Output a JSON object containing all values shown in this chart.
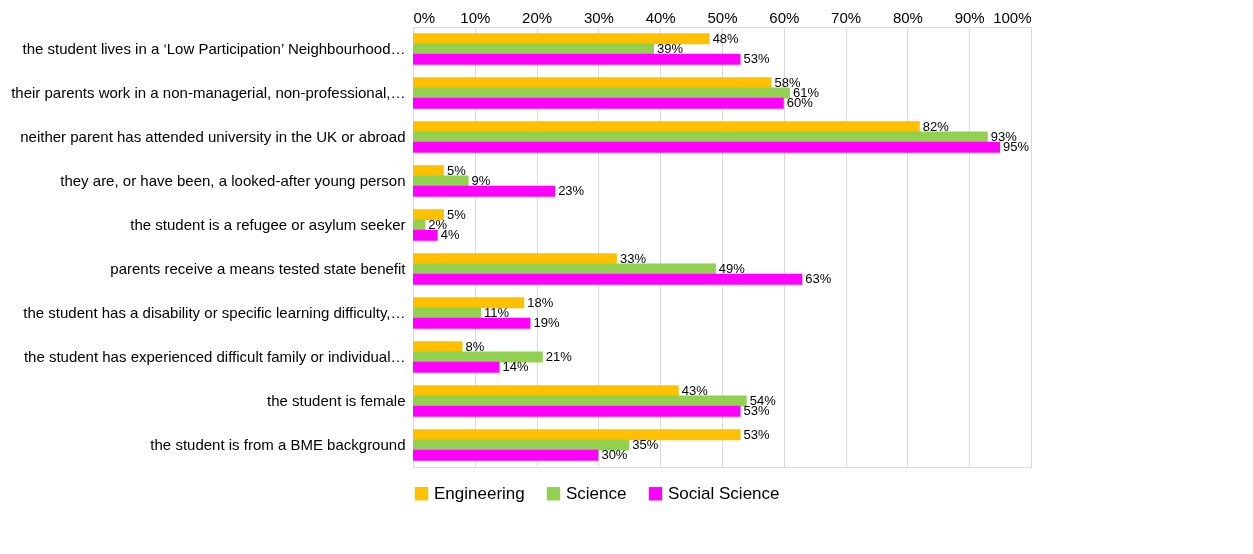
{
  "chart_data": {
    "type": "bar",
    "orientation": "horizontal",
    "categories": [
      "the student lives in a ‘Low Participation’ Neighbourhood…",
      "their parents work in a non-managerial, non-professional,…",
      "neither parent has attended university in the UK or abroad",
      "they are, or have been, a looked-after young person",
      "the student is a refugee or asylum seeker",
      "parents receive a means tested state benefit",
      "the student has a disability or specific learning difficulty,…",
      "the student has experienced difficult family or individual…",
      "the student is female",
      "the student is from a BME background"
    ],
    "series": [
      {
        "name": "Engineering",
        "color": "#ffc000",
        "values": [
          48,
          58,
          82,
          5,
          5,
          33,
          18,
          8,
          43,
          53
        ],
        "value_labels": [
          "48%",
          "58%",
          "82%",
          "5%",
          "5%",
          "33%",
          "18%",
          "8%",
          "43%",
          "53%"
        ]
      },
      {
        "name": "Science",
        "color": "#92d050",
        "values": [
          39,
          61,
          93,
          9,
          2,
          49,
          11,
          21,
          54,
          35
        ],
        "value_labels": [
          "39%",
          "61%",
          "93%",
          "9%",
          "2%",
          "49%",
          "11%",
          "21%",
          "54%",
          "35%"
        ]
      },
      {
        "name": "Social Science",
        "color": "#ff00ff",
        "values": [
          53,
          60,
          95,
          23,
          4,
          63,
          19,
          14,
          53,
          30
        ],
        "value_labels": [
          "53%",
          "60%",
          "95%",
          "23%",
          "4%",
          "63%",
          "19%",
          "14%",
          "53%",
          "30%"
        ]
      }
    ],
    "xlim": [
      0,
      100
    ],
    "xticks": [
      {
        "value": 0,
        "label": "0%"
      },
      {
        "value": 10,
        "label": "10%"
      },
      {
        "value": 20,
        "label": "20%"
      },
      {
        "value": 30,
        "label": "30%"
      },
      {
        "value": 40,
        "label": "40%"
      },
      {
        "value": 50,
        "label": "50%"
      },
      {
        "value": 60,
        "label": "60%"
      },
      {
        "value": 70,
        "label": "70%"
      },
      {
        "value": 80,
        "label": "80%"
      },
      {
        "value": 90,
        "label": "90%"
      },
      {
        "value": 100,
        "label": "100%"
      }
    ],
    "grid": "x",
    "legend": "bottom"
  }
}
